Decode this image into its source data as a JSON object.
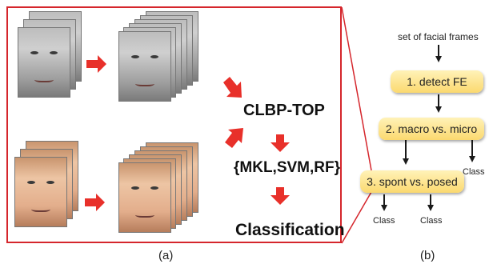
{
  "panel_a": {
    "label": "(a)",
    "features": "CLBP-TOP",
    "classifiers": "{MKL,SVM,RF}",
    "output": "Classification"
  },
  "panel_b": {
    "label": "(b)",
    "input": "set of facial frames",
    "nodes": [
      "1. detect FE",
      "2. macro vs. micro",
      "3. spont vs. posed"
    ],
    "class_label": "Class"
  },
  "colors": {
    "frame_border": "#d5262c",
    "arrow_red": "#e8302a",
    "node_fill": "#fbd96f",
    "arrow_black": "#1a1a1a"
  }
}
